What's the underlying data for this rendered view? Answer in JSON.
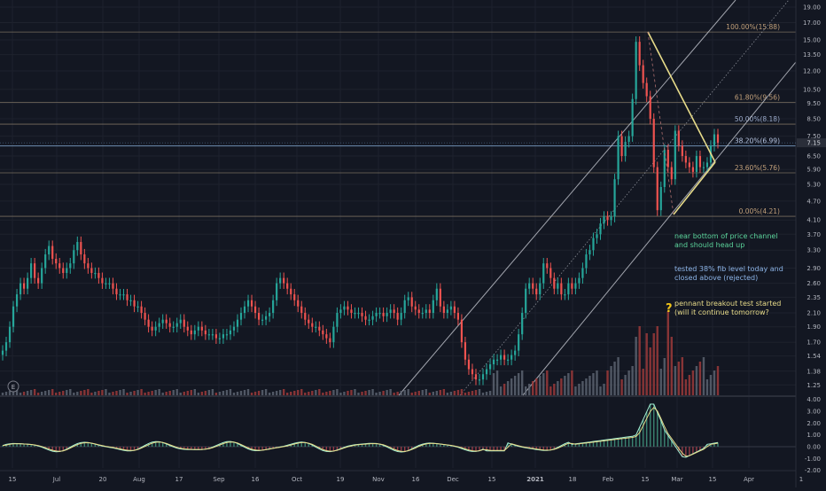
{
  "colors": {
    "background": "#131722",
    "grid": "#1e222d",
    "axis_text": "#b2b5be",
    "up": "#26a69a",
    "down": "#ef5350",
    "channel": "#d1d4dc",
    "pennant": "#e8dc8a",
    "fib_line": "#787b86",
    "fib_100": "#c2a07a",
    "fib_618": "#c2a07a",
    "fib_500": "#9aa9c9",
    "fib_382": "#b6c4e0",
    "fib_236": "#c2a07a",
    "fib_000": "#c2a07a",
    "price_tag": "#2a2e39",
    "note_green": "#5bd49b",
    "note_blue": "#8bb3e6",
    "note_yellow": "#e8dc8a",
    "osc_line": "#a5f0d4",
    "osc_signal": "#e8dc8a"
  },
  "chart_data": [
    {
      "type": "candlestick",
      "y_scale": "log",
      "ylim": [
        1.16,
        20.0
      ],
      "x_tick_labels": [
        "15",
        "Jul",
        "20",
        "Aug",
        "17",
        "Sep",
        "16",
        "Oct",
        "19",
        "Nov",
        "16",
        "Dec",
        "15",
        "2021",
        "18",
        "Feb",
        "15",
        "Mar",
        "15",
        "Apr",
        "1"
      ],
      "y_tick_labels": [
        "19.00",
        "17.00",
        "15.00",
        "13.50",
        "12.00",
        "10.50",
        "9.50",
        "8.50",
        "7.50",
        "6.50",
        "5.90",
        "5.30",
        "4.70",
        "4.10",
        "3.70",
        "3.30",
        "2.90",
        "2.60",
        "2.35",
        "2.10",
        "1.90",
        "1.70",
        "1.54",
        "1.38",
        "1.25"
      ],
      "last_price_label": "7.15",
      "last_price": 7.15,
      "fib_levels": [
        {
          "label": "100.00%(15.88)",
          "value": 15.88
        },
        {
          "label": "61.80%(9.56)",
          "value": 9.56
        },
        {
          "label": "50.00%(8.18)",
          "value": 8.18
        },
        {
          "label": "38.20%(6.99)",
          "value": 6.99
        },
        {
          "label": "23.60%(5.76)",
          "value": 5.76
        },
        {
          "label": "0.00%(4.21)",
          "value": 4.21
        }
      ],
      "annotations": [
        {
          "id": "note_channel",
          "lines": [
            "near bottom of price channel",
            "and should head up"
          ]
        },
        {
          "id": "note_fib",
          "lines": [
            "tested 38% fib level today and",
            "closed above (rejected)"
          ]
        },
        {
          "id": "note_pennant",
          "lines": [
            "pennant breakout test started",
            "(will it continue tomorrow?"
          ]
        }
      ],
      "question_mark": "?",
      "event_marker": "E",
      "series": [
        {
          "name": "price",
          "values": [
            1.6,
            1.7,
            1.9,
            2.2,
            2.4,
            2.6,
            2.5,
            2.7,
            3.0,
            2.7,
            2.6,
            2.9,
            3.2,
            3.4,
            3.1,
            3.0,
            2.9,
            2.8,
            2.9,
            3.0,
            3.3,
            3.5,
            3.2,
            3.0,
            2.9,
            2.8,
            2.8,
            2.7,
            2.6,
            2.6,
            2.6,
            2.5,
            2.4,
            2.4,
            2.4,
            2.3,
            2.3,
            2.2,
            2.2,
            2.1,
            2.0,
            1.9,
            1.85,
            1.9,
            1.95,
            2.0,
            1.95,
            1.9,
            1.9,
            1.95,
            2.0,
            1.9,
            1.85,
            1.8,
            1.85,
            1.9,
            1.85,
            1.8,
            1.8,
            1.8,
            1.75,
            1.75,
            1.8,
            1.8,
            1.85,
            1.9,
            2.0,
            2.1,
            2.2,
            2.3,
            2.2,
            2.1,
            2.0,
            2.0,
            2.05,
            2.1,
            2.3,
            2.6,
            2.7,
            2.6,
            2.5,
            2.4,
            2.3,
            2.2,
            2.1,
            2.0,
            1.95,
            1.9,
            1.9,
            1.85,
            1.8,
            1.75,
            1.7,
            1.9,
            2.1,
            2.15,
            2.2,
            2.15,
            2.1,
            2.1,
            2.1,
            2.05,
            2.0,
            2.0,
            2.05,
            2.1,
            2.1,
            2.05,
            2.1,
            2.15,
            2.1,
            2.0,
            2.1,
            2.3,
            2.35,
            2.2,
            2.15,
            2.1,
            2.1,
            2.15,
            2.1,
            2.3,
            2.5,
            2.2,
            2.1,
            2.15,
            2.2,
            2.1,
            2.0,
            1.7,
            1.5,
            1.4,
            1.35,
            1.3,
            1.3,
            1.35,
            1.4,
            1.45,
            1.5,
            1.5,
            1.55,
            1.5,
            1.5,
            1.55,
            1.6,
            1.8,
            2.1,
            2.5,
            2.6,
            2.5,
            2.4,
            2.6,
            3.0,
            2.9,
            2.7,
            2.5,
            2.6,
            2.4,
            2.4,
            2.6,
            2.5,
            2.6,
            2.7,
            2.9,
            3.2,
            3.3,
            3.6,
            3.7,
            4.0,
            4.2,
            4.1,
            4.2,
            5.5,
            7.5,
            6.5,
            7.2,
            7.5,
            9.8,
            14.8,
            12.5,
            11.0,
            10.0,
            8.5,
            6.0,
            4.4,
            5.2,
            6.8,
            6.0,
            5.5,
            7.8,
            7.0,
            6.5,
            6.2,
            6.0,
            5.8,
            6.5,
            6.0,
            6.0,
            6.2,
            7.0,
            7.6,
            7.15
          ]
        }
      ]
    },
    {
      "type": "line",
      "name": "oscillator",
      "ylim": [
        -1.8,
        4.2
      ],
      "y_tick_labels": [
        "4.00",
        "3.00",
        "2.00",
        "1.00",
        "0.00",
        "-1.00",
        "-2.00"
      ]
    }
  ]
}
